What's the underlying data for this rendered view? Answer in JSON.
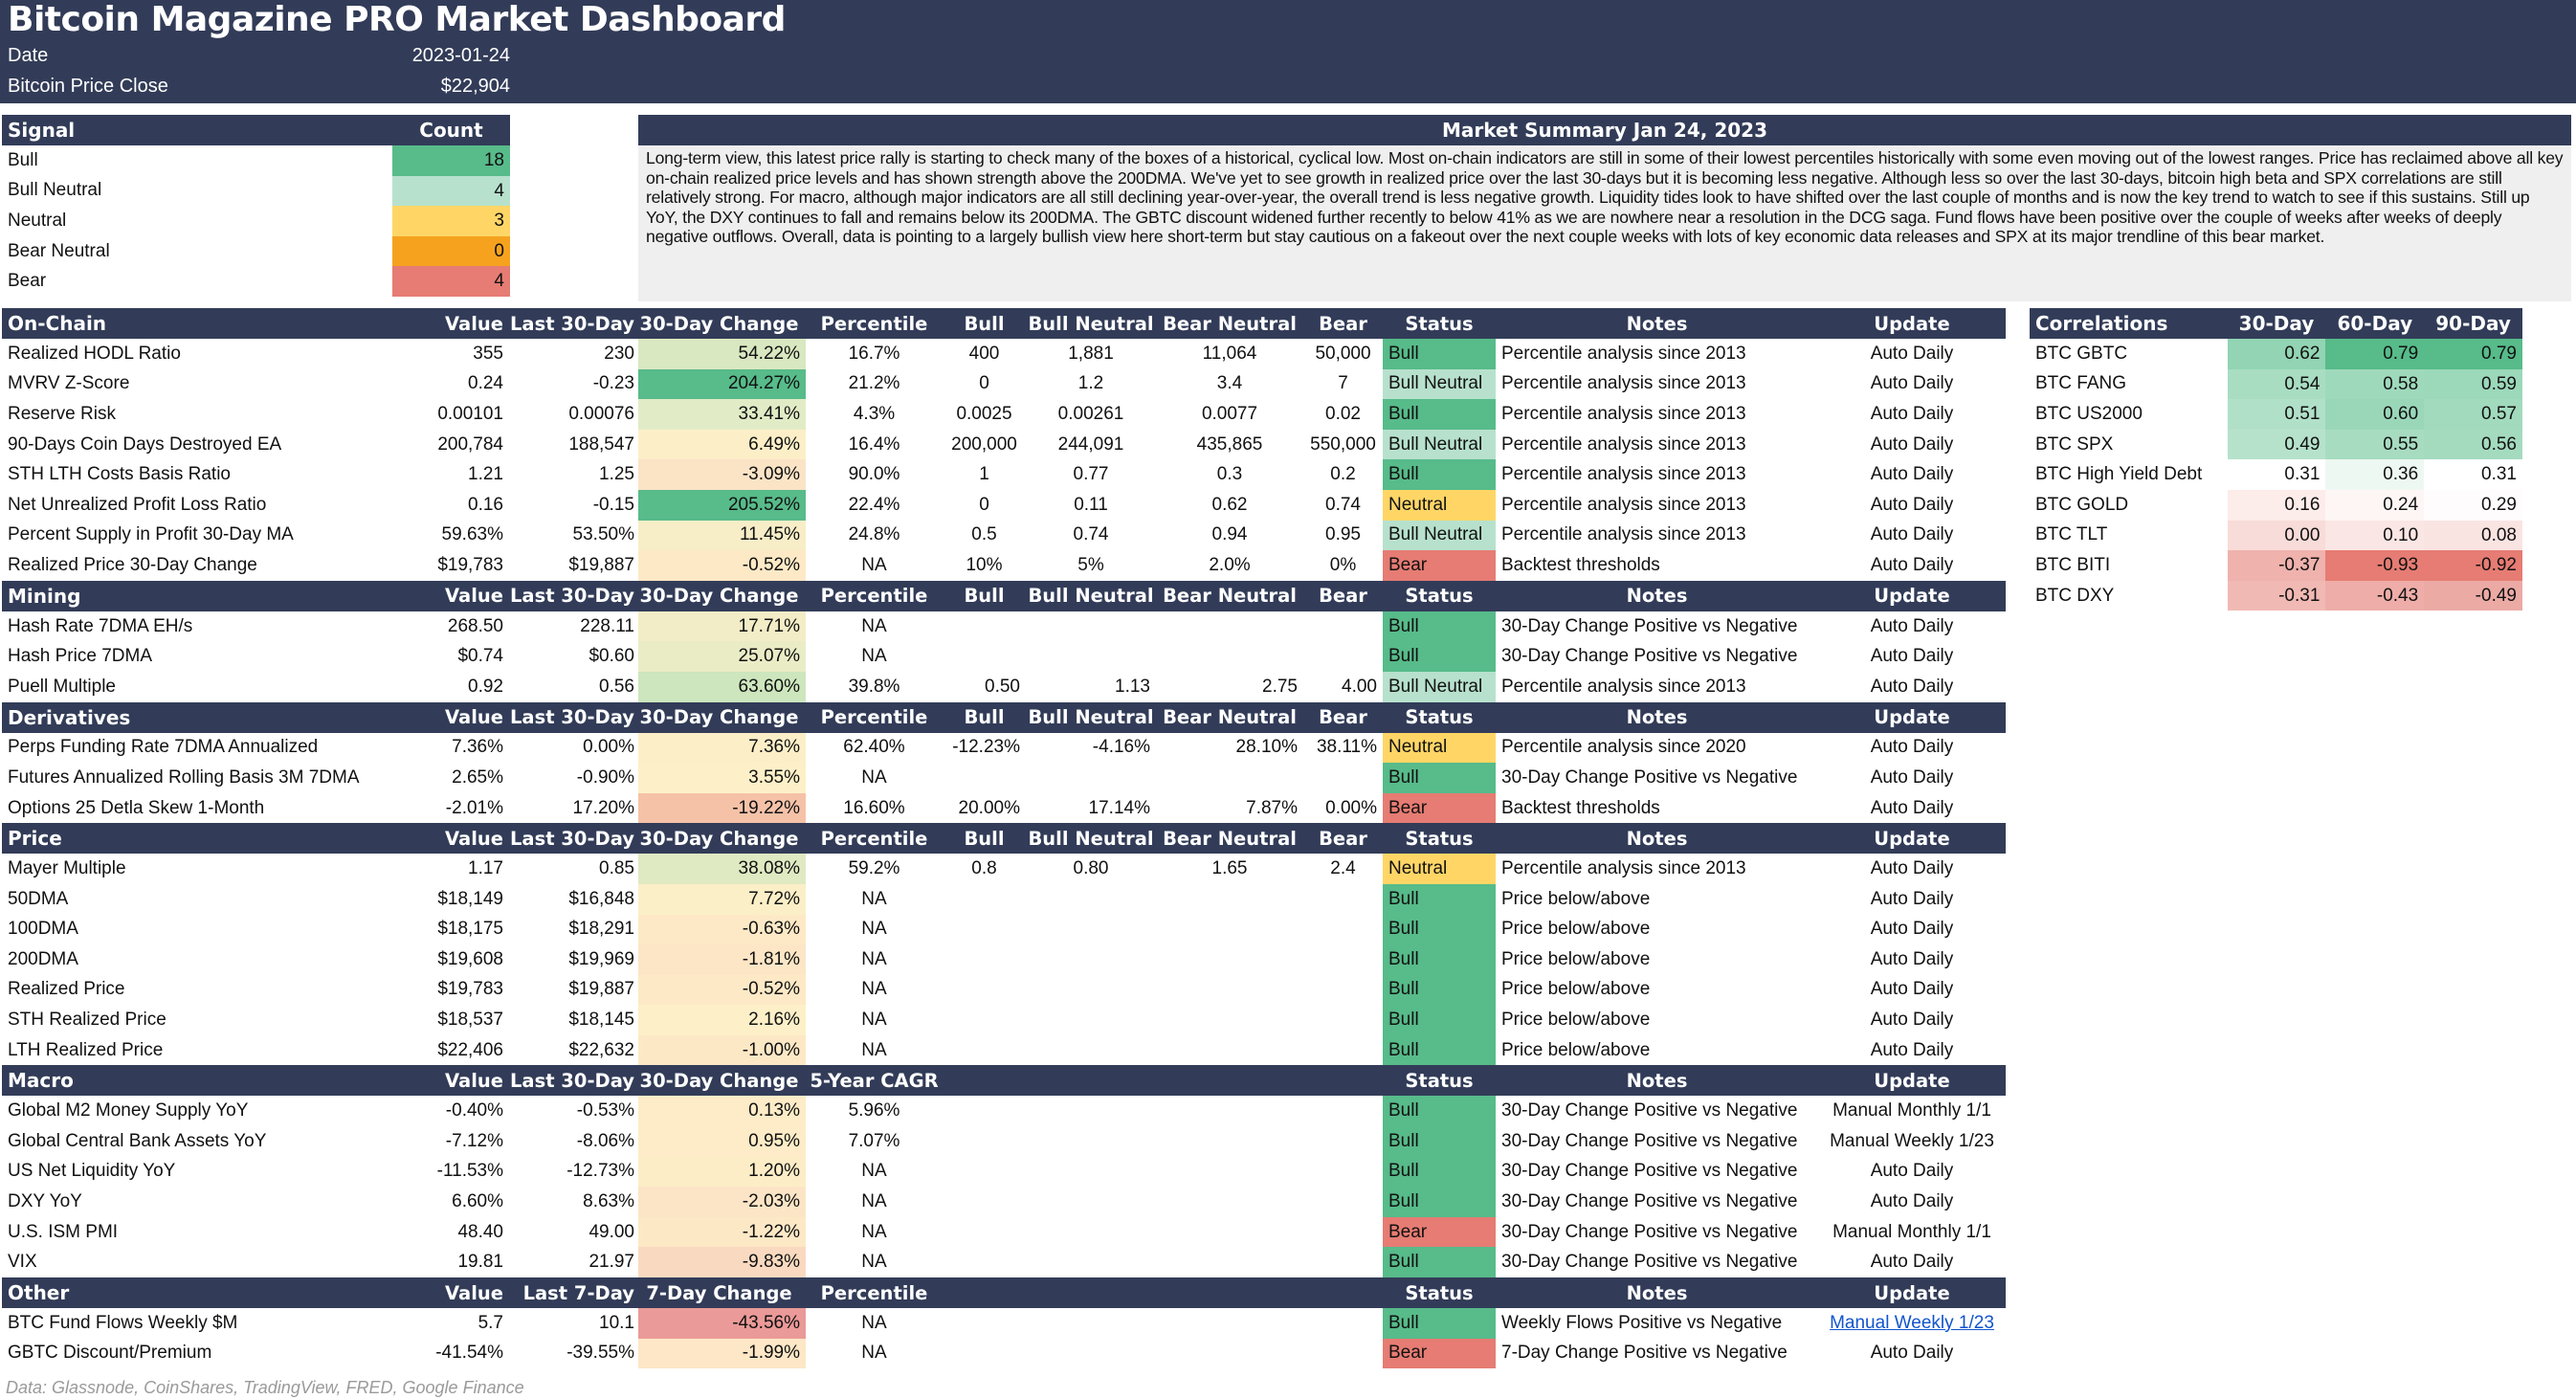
{
  "colors": {
    "navy": "#323c58",
    "bull": "#57bb8a",
    "bull_neutral": "#b7e1cd",
    "neutral": "#ffd666",
    "bear_neutral": "#f6a21e",
    "bear": "#e67c73",
    "link": "#1155cc"
  },
  "banner": {
    "title": "Bitcoin Magazine PRO Market Dashboard",
    "date_label": "Date",
    "date_value": "2023-01-24",
    "price_label": "Bitcoin Price Close",
    "price_value": "$22,904"
  },
  "signal": {
    "header": {
      "signal": "Signal",
      "count": "Count"
    },
    "rows": [
      {
        "label": "Bull",
        "count": "18",
        "color": "#57bb8a"
      },
      {
        "label": "Bull Neutral",
        "count": "4",
        "color": "#b7e1cd"
      },
      {
        "label": "Neutral",
        "count": "3",
        "color": "#ffd666"
      },
      {
        "label": "Bear Neutral",
        "count": "0",
        "color": "#f6a21e"
      },
      {
        "label": "Bear",
        "count": "4",
        "color": "#e67c73"
      }
    ]
  },
  "summary": {
    "title": "Market Summary Jan 24, 2023",
    "text": "Long-term view, this latest price rally is starting to check many of the boxes of a historical, cyclical low. Most on-chain indicators are still in some of their lowest percentiles historically with some even moving out of the lowest ranges. Price has reclaimed above all key on-chain realized price levels and has shown strength above the 200DMA. We've yet to see growth in realized price over the last 30-days but it is becoming less negative. Although less so over the last 30-days, bitcoin high beta and SPX correlations are still relatively strong. For macro, although major indicators are all still declining year-over-year, the overall trend is less negative growth. Liquidity tides look to have shifted over the last couple of months and is now the key trend to watch to see if this sustains. Still up YoY, the DXY continues to fall and remains below its 200DMA. The GBTC discount widened further recently to below 41% as we are nowhere near a resolution in the DCG saga. Fund flows have been positive over the couple of weeks after weeks of deeply negative outflows. Overall, data is pointing to a largely bullish view here short-term but stay cautious on a fakeout over the next couple weeks with lots of key economic data releases and SPX at its major trendline of this bear market."
  },
  "sections": [
    {
      "name": "On-Chain",
      "headers": [
        "On-Chain",
        "Value",
        "Last 30-Day",
        "30-Day Change",
        "Percentile",
        "Bull",
        "Bull Neutral",
        "Bear Neutral",
        "Bear",
        "Status",
        "Notes",
        "Update"
      ],
      "rows": [
        {
          "name": "Realized HODL Ratio",
          "value": "355",
          "last": "230",
          "change": "54.22%",
          "change_color": "#d9e8c0",
          "pct": "16.7%",
          "bull": "400",
          "bn": "1,881",
          "ben": "11,064",
          "bear": "50,000",
          "status": "Bull",
          "status_color": "#57bb8a",
          "notes": "Percentile analysis since 2013",
          "update": "Auto Daily"
        },
        {
          "name": "MVRV Z-Score",
          "value": "0.24",
          "last": "-0.23",
          "change": "204.27%",
          "change_color": "#57bb8a",
          "pct": "21.2%",
          "bull": "0",
          "bn": "1.2",
          "ben": "3.4",
          "bear": "7",
          "status": "Bull Neutral",
          "status_color": "#b7e1cd",
          "notes": "Percentile analysis since 2013",
          "update": "Auto Daily"
        },
        {
          "name": "Reserve Risk",
          "value": "0.00101",
          "last": "0.00076",
          "change": "33.41%",
          "change_color": "#e1ecc6",
          "pct": "4.3%",
          "bull": "0.0025",
          "bn": "0.00261",
          "ben": "0.0077",
          "bear": "0.02",
          "status": "Bull",
          "status_color": "#57bb8a",
          "notes": "Percentile analysis since 2013",
          "update": "Auto Daily"
        },
        {
          "name": "90-Days Coin Days Destroyed EA",
          "value": "200,784",
          "last": "188,547",
          "change": "6.49%",
          "change_color": "#fcefc8",
          "pct": "16.4%",
          "bull": "200,000",
          "bn": "244,091",
          "ben": "435,865",
          "bear": "550,000",
          "status": "Bull Neutral",
          "status_color": "#b7e1cd",
          "notes": "Percentile analysis since 2013",
          "update": "Auto Daily"
        },
        {
          "name": "STH LTH Costs Basis Ratio",
          "value": "1.21",
          "last": "1.25",
          "change": "-3.09%",
          "change_color": "#fbe3c6",
          "pct": "90.0%",
          "bull": "1",
          "bn": "0.77",
          "ben": "0.3",
          "bear": "0.2",
          "status": "Bull",
          "status_color": "#57bb8a",
          "notes": "Percentile analysis since 2013",
          "update": "Auto Daily"
        },
        {
          "name": "Net Unrealized Profit Loss Ratio",
          "value": "0.16",
          "last": "-0.15",
          "change": "205.52%",
          "change_color": "#57bb8a",
          "pct": "22.4%",
          "bull": "0",
          "bn": "0.11",
          "ben": "0.62",
          "bear": "0.74",
          "status": "Neutral",
          "status_color": "#ffd666",
          "notes": "Percentile analysis since 2013",
          "update": "Auto Daily"
        },
        {
          "name": "Percent Supply in Profit 30-Day MA",
          "value": "59.63%",
          "last": "53.50%",
          "change": "11.45%",
          "change_color": "#f7eec8",
          "pct": "24.8%",
          "bull": "0.5",
          "bn": "0.74",
          "ben": "0.94",
          "bear": "0.95",
          "status": "Bull Neutral",
          "status_color": "#b7e1cd",
          "notes": "Percentile analysis since 2013",
          "update": "Auto Daily"
        },
        {
          "name": "Realized Price 30-Day Change",
          "value": "$19,783",
          "last": "$19,887",
          "change": "-0.52%",
          "change_color": "#fde9c6",
          "pct": "NA",
          "bull": "10%",
          "bn": "5%",
          "ben": "2.0%",
          "bear": "0%",
          "status": "Bear",
          "status_color": "#e67c73",
          "notes": "Backtest thresholds",
          "update": "Auto Daily"
        }
      ]
    },
    {
      "name": "Mining",
      "headers": [
        "Mining",
        "Value",
        "Last 30-Day",
        "30-Day Change",
        "Percentile",
        "Bull",
        "Bull Neutral",
        "Bear Neutral",
        "Bear",
        "Status",
        "Notes",
        "Update"
      ],
      "rows": [
        {
          "name": "Hash Rate 7DMA EH/s",
          "value": "268.50",
          "last": "228.11",
          "change": "17.71%",
          "change_color": "#f2edc6",
          "pct": "NA",
          "bull": "",
          "bn": "",
          "ben": "",
          "bear": "",
          "status": "Bull",
          "status_color": "#57bb8a",
          "notes": "30-Day Change Positive vs Negative",
          "update": "Auto Daily"
        },
        {
          "name": "Hash Price 7DMA",
          "value": "$0.74",
          "last": "$0.60",
          "change": "25.07%",
          "change_color": "#eaecc6",
          "pct": "NA",
          "bull": "",
          "bn": "",
          "ben": "",
          "bear": "",
          "status": "Bull",
          "status_color": "#57bb8a",
          "notes": "30-Day Change Positive vs Negative",
          "update": "Auto Daily"
        },
        {
          "name": "Puell Multiple",
          "value": "0.92",
          "last": "0.56",
          "change": "63.60%",
          "change_color": "#cde6bd",
          "pct": "39.8%",
          "bull": "0.50",
          "bn": "1.13",
          "ben": "2.75",
          "bear": "4.00",
          "status": "Bull Neutral",
          "status_color": "#b7e1cd",
          "notes": "Percentile analysis since 2013",
          "update": "Auto Daily",
          "right": true
        }
      ]
    },
    {
      "name": "Derivatives",
      "headers": [
        "Derivatives",
        "Value",
        "Last 30-Day",
        "30-Day Change",
        "Percentile",
        "Bull",
        "Bull Neutral",
        "Bear Neutral",
        "Bear",
        "Status",
        "Notes",
        "Update"
      ],
      "rows": [
        {
          "name": "Perps Funding Rate 7DMA Annualized",
          "value": "7.36%",
          "last": "0.00%",
          "change": "7.36%",
          "change_color": "#fcefc8",
          "pct": "62.40%",
          "bull": "-12.23%",
          "bn": "-4.16%",
          "ben": "28.10%",
          "bear": "38.11%",
          "status": "Neutral",
          "status_color": "#ffd666",
          "notes": "Percentile analysis since 2020",
          "update": "Auto Daily",
          "right": true
        },
        {
          "name": "Futures Annualized Rolling Basis 3M 7DMA",
          "value": "2.65%",
          "last": "-0.90%",
          "change": "3.55%",
          "change_color": "#fdf0c8",
          "pct": "NA",
          "bull": "",
          "bn": "",
          "ben": "",
          "bear": "",
          "status": "Bull",
          "status_color": "#57bb8a",
          "notes": "30-Day Change Positive vs Negative",
          "update": "Auto Daily"
        },
        {
          "name": "Options 25 Detla Skew 1-Month",
          "value": "-2.01%",
          "last": "17.20%",
          "change": "-19.22%",
          "change_color": "#f5c2a8",
          "pct": "16.60%",
          "bull": "20.00%",
          "bn": "17.14%",
          "ben": "7.87%",
          "bear": "0.00%",
          "status": "Bear",
          "status_color": "#e67c73",
          "notes": "Backtest thresholds",
          "update": "Auto Daily",
          "right": true
        }
      ]
    },
    {
      "name": "Price",
      "headers": [
        "Price",
        "Value",
        "Last 30-Day",
        "30-Day Change",
        "Percentile",
        "Bull",
        "Bull Neutral",
        "Bear Neutral",
        "Bear",
        "Status",
        "Notes",
        "Update"
      ],
      "rows": [
        {
          "name": "Mayer Multiple",
          "value": "1.17",
          "last": "0.85",
          "change": "38.08%",
          "change_color": "#dfe9c2",
          "pct": "59.2%",
          "bull": "0.8",
          "bn": "0.80",
          "ben": "1.65",
          "bear": "2.4",
          "status": "Neutral",
          "status_color": "#ffd666",
          "notes": "Percentile analysis since 2013",
          "update": "Auto Daily"
        },
        {
          "name": "50DMA",
          "value": "$18,149",
          "last": "$16,848",
          "change": "7.72%",
          "change_color": "#fbefc8",
          "pct": "NA",
          "bull": "",
          "bn": "",
          "ben": "",
          "bear": "",
          "status": "Bull",
          "status_color": "#57bb8a",
          "notes": "Price below/above",
          "update": "Auto Daily"
        },
        {
          "name": "100DMA",
          "value": "$18,175",
          "last": "$18,291",
          "change": "-0.63%",
          "change_color": "#fde9c6",
          "pct": "NA",
          "bull": "",
          "bn": "",
          "ben": "",
          "bear": "",
          "status": "Bull",
          "status_color": "#57bb8a",
          "notes": "Price below/above",
          "update": "Auto Daily"
        },
        {
          "name": "200DMA",
          "value": "$19,608",
          "last": "$19,969",
          "change": "-1.81%",
          "change_color": "#fce6c6",
          "pct": "NA",
          "bull": "",
          "bn": "",
          "ben": "",
          "bear": "",
          "status": "Bull",
          "status_color": "#57bb8a",
          "notes": "Price below/above",
          "update": "Auto Daily"
        },
        {
          "name": "Realized Price",
          "value": "$19,783",
          "last": "$19,887",
          "change": "-0.52%",
          "change_color": "#fde9c6",
          "pct": "NA",
          "bull": "",
          "bn": "",
          "ben": "",
          "bear": "",
          "status": "Bull",
          "status_color": "#57bb8a",
          "notes": "Price below/above",
          "update": "Auto Daily"
        },
        {
          "name": "STH Realized Price",
          "value": "$18,537",
          "last": "$18,145",
          "change": "2.16%",
          "change_color": "#fdf0c8",
          "pct": "NA",
          "bull": "",
          "bn": "",
          "ben": "",
          "bear": "",
          "status": "Bull",
          "status_color": "#57bb8a",
          "notes": "Price below/above",
          "update": "Auto Daily"
        },
        {
          "name": "LTH Realized Price",
          "value": "$22,406",
          "last": "$22,632",
          "change": "-1.00%",
          "change_color": "#fde8c6",
          "pct": "NA",
          "bull": "",
          "bn": "",
          "ben": "",
          "bear": "",
          "status": "Bull",
          "status_color": "#57bb8a",
          "notes": "Price below/above",
          "update": "Auto Daily"
        }
      ]
    },
    {
      "name": "Macro",
      "headers": [
        "Macro",
        "Value",
        "Last 30-Day",
        "30-Day Change",
        "5-Year CAGR",
        "",
        "",
        "",
        "",
        "Status",
        "Notes",
        "Update"
      ],
      "rows": [
        {
          "name": "Global M2 Money Supply YoY",
          "value": "-0.40%",
          "last": "-0.53%",
          "change": "0.13%",
          "change_color": "#fdecc7",
          "pct": "5.96%",
          "bull": "",
          "bn": "",
          "ben": "",
          "bear": "",
          "status": "Bull",
          "status_color": "#57bb8a",
          "notes": "30-Day Change Positive vs Negative",
          "update": "Manual Monthly 1/1"
        },
        {
          "name": "Global Central Bank Assets YoY",
          "value": "-7.12%",
          "last": "-8.06%",
          "change": "0.95%",
          "change_color": "#fdecc7",
          "pct": "7.07%",
          "bull": "",
          "bn": "",
          "ben": "",
          "bear": "",
          "status": "Bull",
          "status_color": "#57bb8a",
          "notes": "30-Day Change Positive vs Negative",
          "update": "Manual Weekly 1/23"
        },
        {
          "name": "US Net Liquidity YoY",
          "value": "-11.53%",
          "last": "-12.73%",
          "change": "1.20%",
          "change_color": "#fdedc7",
          "pct": "NA",
          "bull": "",
          "bn": "",
          "ben": "",
          "bear": "",
          "status": "Bull",
          "status_color": "#57bb8a",
          "notes": "30-Day Change Positive vs Negative",
          "update": "Auto Daily"
        },
        {
          "name": "DXY YoY",
          "value": "6.60%",
          "last": "8.63%",
          "change": "-2.03%",
          "change_color": "#fce5c6",
          "pct": "NA",
          "bull": "",
          "bn": "",
          "ben": "",
          "bear": "",
          "status": "Bull",
          "status_color": "#57bb8a",
          "notes": "30-Day Change Positive vs Negative",
          "update": "Auto Daily"
        },
        {
          "name": "U.S. ISM PMI",
          "value": "48.40",
          "last": "49.00",
          "change": "-1.22%",
          "change_color": "#fde8c6",
          "pct": "NA",
          "bull": "",
          "bn": "",
          "ben": "",
          "bear": "",
          "status": "Bear",
          "status_color": "#e67c73",
          "notes": "30-Day Change Positive vs Negative",
          "update": "Manual Monthly 1/1"
        },
        {
          "name": "VIX",
          "value": "19.81",
          "last": "21.97",
          "change": "-9.83%",
          "change_color": "#f9dac0",
          "pct": "NA",
          "bull": "",
          "bn": "",
          "ben": "",
          "bear": "",
          "status": "Bull",
          "status_color": "#57bb8a",
          "notes": "30-Day Change Positive vs Negative",
          "update": "Auto Daily"
        }
      ]
    },
    {
      "name": "Other",
      "headers": [
        "Other",
        "Value",
        "Last 7-Day",
        "7-Day Change",
        "Percentile",
        "",
        "",
        "",
        "",
        "Status",
        "Notes",
        "Update"
      ],
      "rows": [
        {
          "name": "BTC Fund Flows Weekly $M",
          "value": "5.7",
          "last": "10.1",
          "change": "-43.56%",
          "change_color": "#ea9a98",
          "pct": "NA",
          "bull": "",
          "bn": "",
          "ben": "",
          "bear": "",
          "status": "Bull",
          "status_color": "#57bb8a",
          "notes": "Weekly Flows Positive vs Negative",
          "update": "Manual Weekly 1/23",
          "update_link": true
        },
        {
          "name": "GBTC Discount/Premium",
          "value": "-41.54%",
          "last": "-39.55%",
          "change": "-1.99%",
          "change_color": "#fde7c6",
          "pct": "NA",
          "bull": "",
          "bn": "",
          "ben": "",
          "bear": "",
          "status": "Bear",
          "status_color": "#e67c73",
          "notes": "7-Day Change Positive vs Negative",
          "update": "Auto Daily"
        }
      ]
    }
  ],
  "correlations": {
    "headers": [
      "Correlations",
      "30-Day",
      "60-Day",
      "90-Day"
    ],
    "rows": [
      {
        "name": "BTC GBTC",
        "values": [
          "0.62",
          "0.79",
          "0.79"
        ],
        "colors": [
          "#92d4b3",
          "#57bb8a",
          "#57bb8a"
        ]
      },
      {
        "name": "BTC FANG",
        "values": [
          "0.54",
          "0.58",
          "0.59"
        ],
        "colors": [
          "#a8ddc2",
          "#9fd9bc",
          "#9cd8ba"
        ]
      },
      {
        "name": "BTC US2000",
        "values": [
          "0.51",
          "0.60",
          "0.57"
        ],
        "colors": [
          "#b1e0c8",
          "#9ad7b9",
          "#a2dabd"
        ]
      },
      {
        "name": "BTC SPX",
        "values": [
          "0.49",
          "0.55",
          "0.56"
        ],
        "colors": [
          "#b6e2cb",
          "#a7dcc1",
          "#a4dbbf"
        ]
      },
      {
        "name": "BTC High Yield Debt",
        "values": [
          "0.31",
          "0.36",
          "0.31"
        ],
        "colors": [
          "#ffffff",
          "#eef8f2",
          "#ffffff"
        ]
      },
      {
        "name": "BTC GOLD",
        "values": [
          "0.16",
          "0.24",
          "0.29"
        ],
        "colors": [
          "#fcecea",
          "#fdf6f5",
          "#fefcfc"
        ]
      },
      {
        "name": "BTC TLT",
        "values": [
          "0.00",
          "0.10",
          "0.08"
        ],
        "colors": [
          "#f8dcd9",
          "#fae6e4",
          "#f9e4e2"
        ]
      },
      {
        "name": "BTC BITI",
        "values": [
          "-0.37",
          "-0.93",
          "-0.92"
        ],
        "colors": [
          "#efb2ad",
          "#e67c73",
          "#e67c73"
        ]
      },
      {
        "name": "BTC DXY",
        "values": [
          "-0.31",
          "-0.43",
          "-0.49"
        ],
        "colors": [
          "#f1b9b4",
          "#eeada8",
          "#ecaaa5"
        ]
      }
    ]
  },
  "footer": {
    "sources": "Data: Glassnode, CoinShares, TradingView, FRED, Google Finance"
  }
}
